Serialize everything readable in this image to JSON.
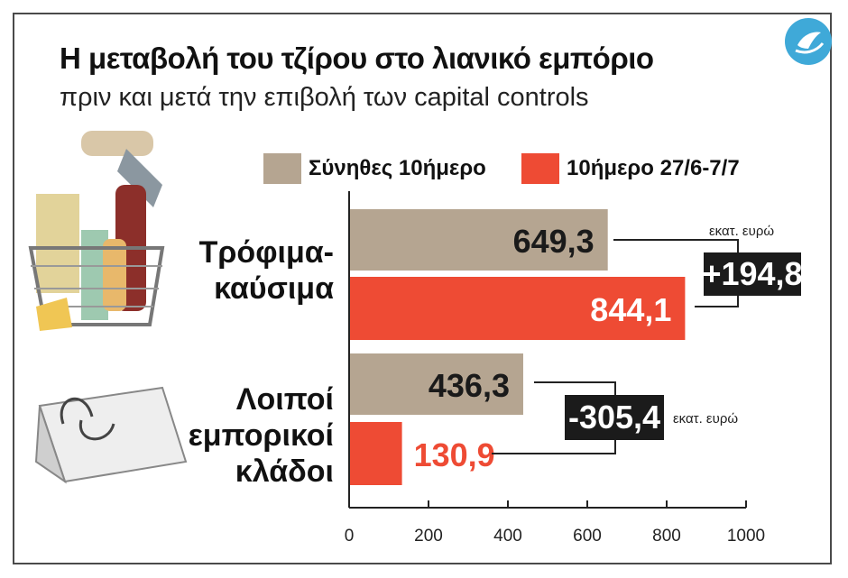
{
  "chart_data": {
    "type": "bar",
    "orientation": "horizontal",
    "title": "Η μεταβολή του τζίρου στο λιανικό εμπόριο",
    "subtitle": "πριν και μετά την επιβολή των capital controls",
    "categories": [
      "Τρόφιμα-\nκαύσιμα",
      "Λοιποί\nεμπορικοί\nκλάδοι"
    ],
    "series": [
      {
        "name": "Σύνηθες 10ήμερο",
        "color": "#b5a591",
        "values": [
          649.3,
          436.3
        ],
        "labels": [
          "649,3",
          "436,3"
        ]
      },
      {
        "name": "10ήμερο 27/6-7/7",
        "color": "#ee4b34",
        "values": [
          844.1,
          130.9
        ],
        "labels": [
          "844,1",
          "130,9"
        ]
      }
    ],
    "xlim": [
      0,
      1000
    ],
    "xticks": [
      "0",
      "200",
      "400",
      "600",
      "800",
      "1000"
    ],
    "grid": false,
    "legend_position": "top",
    "annotations": [
      {
        "category": 0,
        "text": "+194,8",
        "unit": "εκατ. ευρώ"
      },
      {
        "category": 1,
        "text": "-305,4",
        "unit": "εκατ. ευρώ"
      }
    ]
  }
}
